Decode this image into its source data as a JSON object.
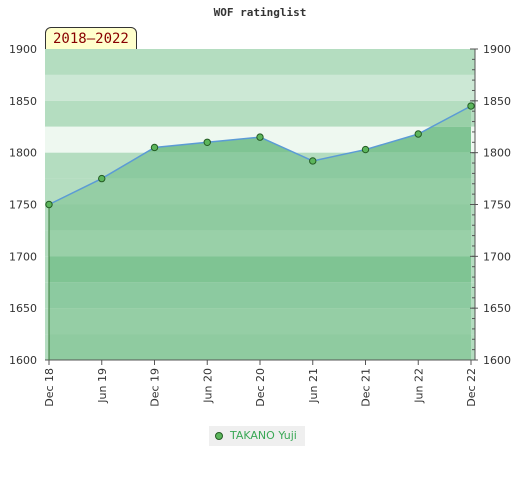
{
  "chart_data": {
    "type": "area",
    "title": "WOF ratinglist",
    "badge": "2018–2022",
    "categories": [
      "Dec 18",
      "Jun 19",
      "Dec 19",
      "Jun 20",
      "Dec 20",
      "Jun 21",
      "Dec 21",
      "Jun 22",
      "Dec 22"
    ],
    "series": [
      {
        "name": "TAKANO Yuji",
        "values": [
          1750,
          1775,
          1805,
          1810,
          1815,
          1792,
          1803,
          1818,
          1845
        ]
      }
    ],
    "ylim": [
      1600,
      1900
    ],
    "yticks": [
      1600,
      1650,
      1700,
      1750,
      1800,
      1850,
      1900
    ],
    "y_axis_sides": "both",
    "colors": {
      "line": "#5b9bd5",
      "marker": "#5cb65c",
      "area": "#6fbf7f"
    }
  }
}
